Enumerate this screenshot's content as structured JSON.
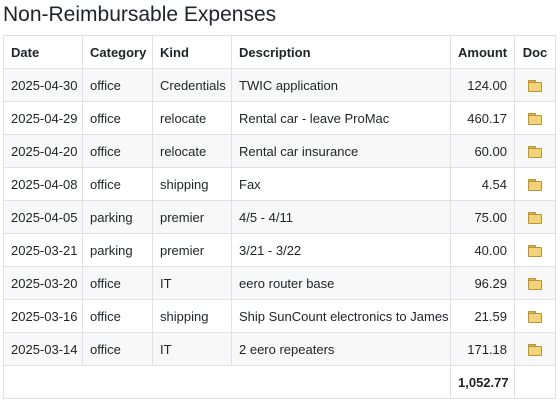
{
  "page": {
    "title": "Non-Reimbursable Expenses"
  },
  "table": {
    "columns": {
      "date": "Date",
      "category": "Category",
      "kind": "Kind",
      "description": "Description",
      "amount": "Amount",
      "doc": "Doc"
    },
    "rows": [
      {
        "date": "2025-04-30",
        "category": "office",
        "kind": "Credentials",
        "description": "TWIC application",
        "amount": "124.00",
        "doc_icon": "folder-icon"
      },
      {
        "date": "2025-04-29",
        "category": "office",
        "kind": "relocate",
        "description": "Rental car - leave ProMac",
        "amount": "460.17",
        "doc_icon": "folder-icon"
      },
      {
        "date": "2025-04-20",
        "category": "office",
        "kind": "relocate",
        "description": "Rental car insurance",
        "amount": "60.00",
        "doc_icon": "folder-icon"
      },
      {
        "date": "2025-04-08",
        "category": "office",
        "kind": "shipping",
        "description": "Fax",
        "amount": "4.54",
        "doc_icon": "folder-icon"
      },
      {
        "date": "2025-04-05",
        "category": "parking",
        "kind": "premier",
        "description": "4/5 - 4/11",
        "amount": "75.00",
        "doc_icon": "folder-icon"
      },
      {
        "date": "2025-03-21",
        "category": "parking",
        "kind": "premier",
        "description": "3/21 - 3/22",
        "amount": "40.00",
        "doc_icon": "folder-icon"
      },
      {
        "date": "2025-03-20",
        "category": "office",
        "kind": "IT",
        "description": "eero router base",
        "amount": "96.29",
        "doc_icon": "folder-icon"
      },
      {
        "date": "2025-03-16",
        "category": "office",
        "kind": "shipping",
        "description": "Ship SunCount electronics to James",
        "amount": "21.59",
        "doc_icon": "folder-icon"
      },
      {
        "date": "2025-03-14",
        "category": "office",
        "kind": "IT",
        "description": "2 eero repeaters",
        "amount": "171.18",
        "doc_icon": "folder-icon"
      }
    ],
    "total": "1,052.77"
  },
  "colors": {
    "border": "#dee2e6",
    "stripe": "#f8f8f8",
    "folder": "#f2d37c"
  }
}
